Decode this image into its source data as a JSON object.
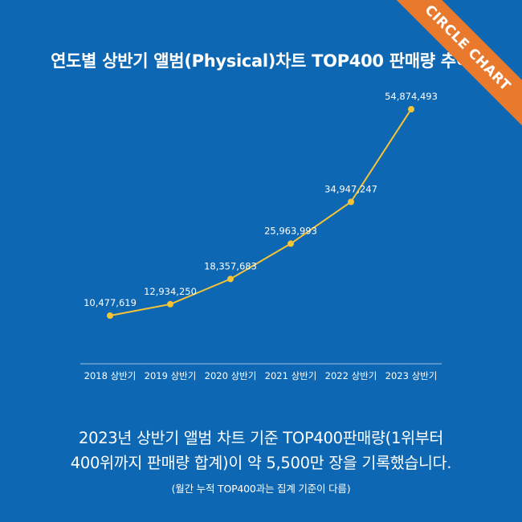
{
  "badge": {
    "label": "CIRCLE CHART",
    "color": "#e8792d"
  },
  "colors": {
    "background": "#0d67b2",
    "line": "#f5c436",
    "text": "#ffffff"
  },
  "chart_data": {
    "type": "line",
    "title": "연도별 상반기 앨범(Physical)차트 TOP400 판매량 추이",
    "categories": [
      "2018 상반기",
      "2019 상반기",
      "2020 상반기",
      "2021 상반기",
      "2022 상반기",
      "2023 상반기"
    ],
    "values": [
      10477619,
      12934250,
      18357683,
      25963993,
      34947247,
      54874493
    ],
    "data_labels": [
      "10,477,619",
      "12,934,250",
      "18,357,683",
      "25,963,993",
      "34,947,247",
      "54,874,493"
    ],
    "xlabel": "",
    "ylabel": "",
    "ylim": [
      0,
      60000000
    ],
    "grid": false,
    "y_axis_visible": false
  },
  "note": {
    "line1": "2023년 상반기 앨범 차트 기준 TOP400판매량(1위부터",
    "line2": "400위까지 판매량 합계)이 약 5,500만 장을 기록했습니다.",
    "sub": "(월간 누적 TOP400과는 집계 기준이 다름)"
  }
}
